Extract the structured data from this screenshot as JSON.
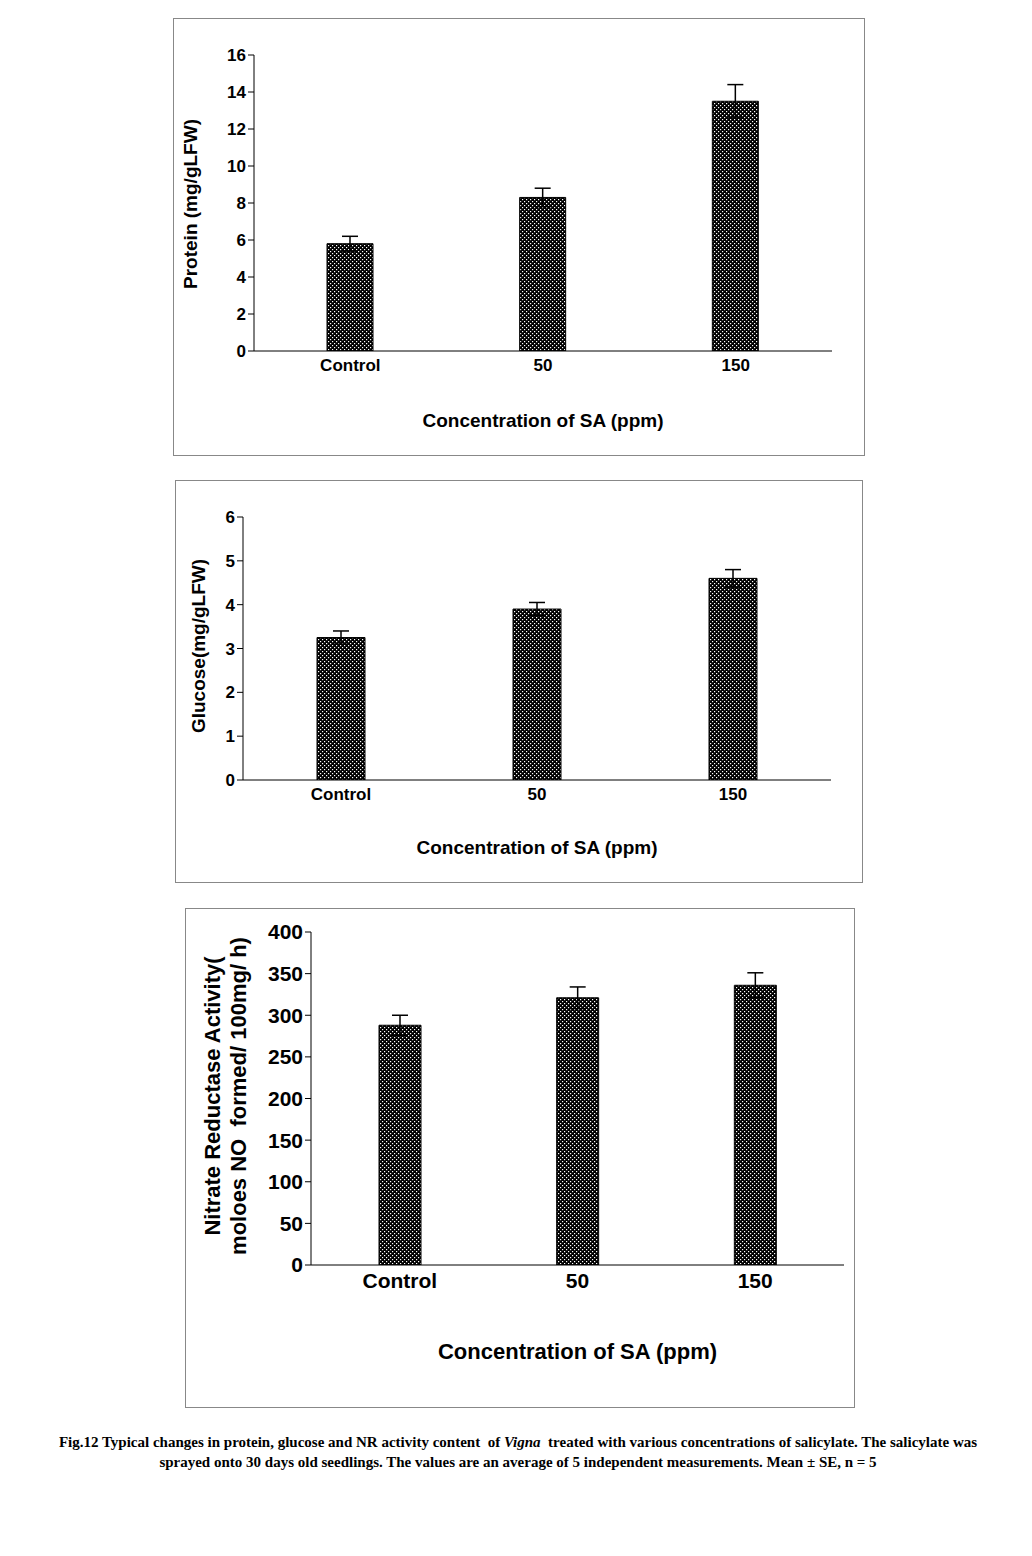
{
  "chart_data": [
    {
      "type": "bar",
      "ylabel": [
        "Protein (mg/gLFW)"
      ],
      "xlabel": "Concentration of SA (ppm)",
      "categories": [
        "Control",
        "50",
        "150"
      ],
      "values": [
        5.8,
        8.3,
        13.5
      ],
      "errors": [
        0.4,
        0.5,
        0.9
      ],
      "color": "#000000",
      "ylim": [
        0,
        16
      ],
      "yticks": [
        0,
        2,
        4,
        6,
        8,
        10,
        12,
        14,
        16
      ],
      "grid": false
    },
    {
      "type": "bar",
      "ylabel": [
        "Glucose(mg/gLFW)"
      ],
      "xlabel": "Concentration of SA (ppm)",
      "categories": [
        "Control",
        "50",
        "150"
      ],
      "values": [
        3.25,
        3.9,
        4.6
      ],
      "errors": [
        0.15,
        0.15,
        0.2
      ],
      "color": "#000000",
      "ylim": [
        0,
        6
      ],
      "yticks": [
        0,
        1,
        2,
        3,
        4,
        5,
        6
      ],
      "grid": false
    },
    {
      "type": "bar",
      "ylabel": [
        "Nitrate Reductase Activity(",
        "moloes NO  formed/ 100mg/ h)"
      ],
      "xlabel": "Concentration of SA (ppm)",
      "categories": [
        "Control",
        "50",
        "150"
      ],
      "values": [
        288,
        321,
        336
      ],
      "errors": [
        12,
        13,
        15
      ],
      "color": "#000000",
      "ylim": [
        0,
        400
      ],
      "yticks": [
        0,
        50,
        100,
        150,
        200,
        250,
        300,
        350,
        400
      ],
      "grid": false
    }
  ],
  "caption": [
    "Fig.12 Typical changes in protein, glucose and NR activity content  of ",
    "Vigna",
    "  treated with various concentrations of salicylate. The salicylate was sprayed onto 30 days old seedlings. The values are an average of 5 independent measurements. Mean ± SE, n = 5"
  ]
}
